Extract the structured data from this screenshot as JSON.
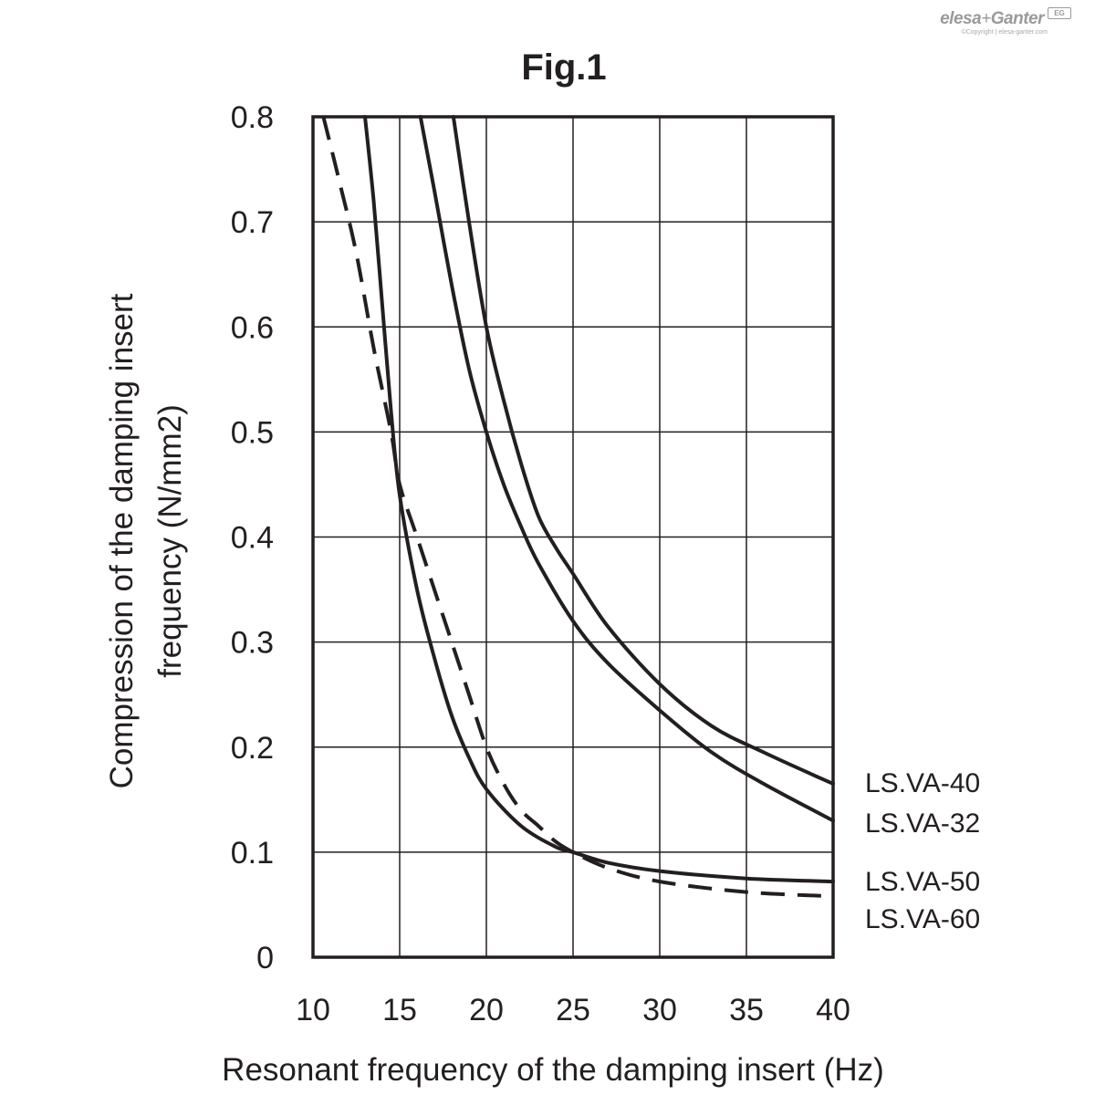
{
  "logo": {
    "brand_left": "elesa",
    "brand_plus": "+",
    "brand_right": "Ganter",
    "badge": "EG",
    "copyright": "©Copyright | elesa-ganter.com"
  },
  "chart_data": {
    "type": "line",
    "title": "Fig.1",
    "xlabel": "Resonant frequency of the damping insert (Hz)",
    "ylabel_lines": [
      "Compression of the damping insert",
      "frequency (N/mm2)"
    ],
    "xlim": [
      10,
      40
    ],
    "ylim": [
      0,
      0.8
    ],
    "x_ticks": [
      "10",
      "15",
      "20",
      "25",
      "30",
      "35",
      "40"
    ],
    "y_ticks": [
      "0",
      "0.1",
      "0.2",
      "0.3",
      "0.4",
      "0.5",
      "0.6",
      "0.7",
      "0.8"
    ],
    "grid": true,
    "legend_placement": "right",
    "series": [
      {
        "name": "LS.VA-40",
        "style": "solid",
        "x": [
          18.1,
          19,
          20,
          21,
          22,
          23,
          24,
          25,
          27,
          30,
          33,
          36,
          40
        ],
        "y": [
          0.8,
          0.7,
          0.6,
          0.53,
          0.47,
          0.42,
          0.39,
          0.365,
          0.315,
          0.26,
          0.22,
          0.195,
          0.165
        ]
      },
      {
        "name": "LS.VA-32",
        "style": "solid",
        "x": [
          16.2,
          17,
          18,
          19,
          20,
          21,
          22,
          23,
          25,
          27,
          30,
          33,
          36,
          40
        ],
        "y": [
          0.8,
          0.73,
          0.64,
          0.56,
          0.5,
          0.45,
          0.41,
          0.375,
          0.32,
          0.28,
          0.235,
          0.195,
          0.165,
          0.13
        ]
      },
      {
        "name": "LS.VA-50",
        "style": "solid",
        "x": [
          13.0,
          13.5,
          14,
          14.5,
          15,
          16,
          17,
          18,
          19,
          20,
          22,
          24,
          25,
          27,
          30,
          35,
          40
        ],
        "y": [
          0.8,
          0.72,
          0.62,
          0.52,
          0.44,
          0.35,
          0.285,
          0.23,
          0.19,
          0.16,
          0.125,
          0.105,
          0.1,
          0.09,
          0.082,
          0.075,
          0.072
        ]
      },
      {
        "name": "LS.VA-60",
        "style": "dashed",
        "x": [
          10.6,
          11.5,
          12.5,
          13.5,
          14.5,
          15,
          16,
          17,
          18,
          19,
          20,
          21,
          22,
          23,
          24,
          25,
          27,
          30,
          35,
          40
        ],
        "y": [
          0.8,
          0.74,
          0.67,
          0.58,
          0.5,
          0.45,
          0.4,
          0.35,
          0.3,
          0.25,
          0.2,
          0.165,
          0.14,
          0.125,
          0.11,
          0.1,
          0.085,
          0.072,
          0.062,
          0.058
        ]
      }
    ]
  }
}
